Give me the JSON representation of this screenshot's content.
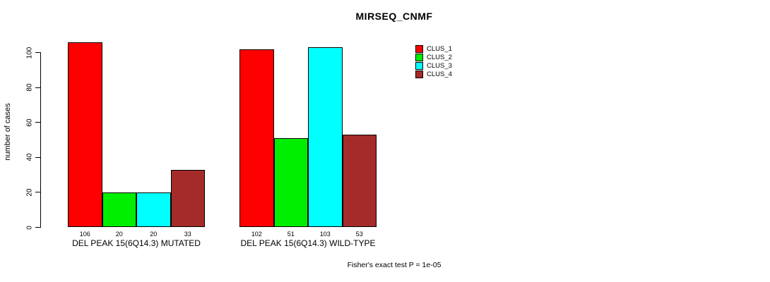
{
  "title": "MIRSEQ_CNMF",
  "y_axis": {
    "label": "number of cases",
    "ticks": [
      0,
      20,
      40,
      60,
      80,
      100
    ]
  },
  "footer": "Fisher's exact test P = 1e-05",
  "chart_data": {
    "type": "bar",
    "title": "MIRSEQ_CNMF",
    "xlabel": "",
    "ylabel": "number of cases",
    "ylim": [
      0,
      110
    ],
    "y_ticks": [
      0,
      20,
      40,
      60,
      80,
      100
    ],
    "grid": false,
    "legend_position": "inside-top-right",
    "categories": [
      "DEL PEAK 15(6Q14.3) MUTATED",
      "DEL PEAK 15(6Q14.3) WILD-TYPE"
    ],
    "series": [
      {
        "name": "CLUS_1",
        "color": "#FF0000",
        "values": [
          106,
          102
        ]
      },
      {
        "name": "CLUS_2",
        "color": "#00EE00",
        "values": [
          20,
          51
        ]
      },
      {
        "name": "CLUS_3",
        "color": "#00FFFF",
        "values": [
          20,
          103
        ]
      },
      {
        "name": "CLUS_4",
        "color": "#A52A2A",
        "values": [
          33,
          53
        ]
      }
    ],
    "bar_value_labels": [
      [
        106,
        20,
        20,
        33
      ],
      [
        102,
        51,
        103,
        53
      ]
    ],
    "annotation": "Fisher's exact test P = 1e-05"
  }
}
